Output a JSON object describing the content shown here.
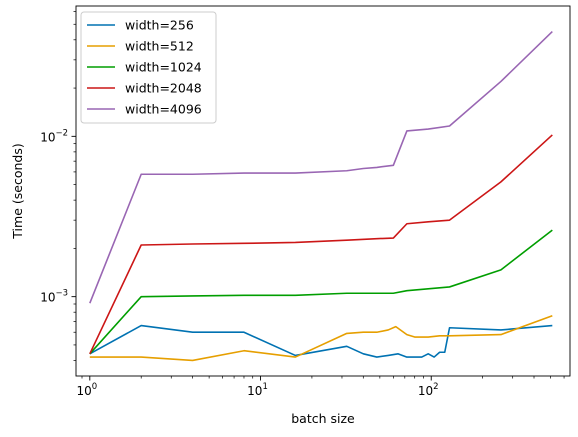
{
  "chart_data": {
    "type": "line",
    "xlabel": "batch size",
    "ylabel": "Time (seconds)",
    "xscale": "log",
    "yscale": "log",
    "xlim": [
      0.83,
      650
    ],
    "ylim": [
      0.00032,
      0.065
    ],
    "grid": false,
    "legend_position": "top-left",
    "x_ticks": [
      {
        "value": 1,
        "label": "10",
        "exp": "0"
      },
      {
        "value": 10,
        "label": "10",
        "exp": "1"
      },
      {
        "value": 100,
        "label": "10",
        "exp": "2"
      }
    ],
    "y_ticks": [
      {
        "value": 0.001,
        "label": "10",
        "exp": "−3"
      },
      {
        "value": 0.01,
        "label": "10",
        "exp": "−2"
      }
    ],
    "series": [
      {
        "name": "width=256",
        "color": "#0072b2",
        "points": [
          [
            1,
            0.00044
          ],
          [
            2,
            0.00066
          ],
          [
            4,
            0.0006
          ],
          [
            8,
            0.0006
          ],
          [
            16,
            0.00043
          ],
          [
            32,
            0.00049
          ],
          [
            40,
            0.00044
          ],
          [
            48,
            0.00042
          ],
          [
            56,
            0.00043
          ],
          [
            64,
            0.00044
          ],
          [
            72,
            0.00042
          ],
          [
            80,
            0.00042
          ],
          [
            88,
            0.00042
          ],
          [
            96,
            0.00044
          ],
          [
            104,
            0.00042
          ],
          [
            112,
            0.00045
          ],
          [
            120,
            0.00045
          ],
          [
            128,
            0.00064
          ],
          [
            256,
            0.00062
          ],
          [
            512,
            0.00066
          ]
        ]
      },
      {
        "name": "width=512",
        "color": "#e69f00",
        "points": [
          [
            1,
            0.00042
          ],
          [
            2,
            0.00042
          ],
          [
            4,
            0.0004
          ],
          [
            8,
            0.00046
          ],
          [
            16,
            0.00042
          ],
          [
            32,
            0.00059
          ],
          [
            40,
            0.0006
          ],
          [
            48,
            0.0006
          ],
          [
            56,
            0.00062
          ],
          [
            62,
            0.00065
          ],
          [
            72,
            0.00058
          ],
          [
            80,
            0.00056
          ],
          [
            96,
            0.00056
          ],
          [
            112,
            0.00057
          ],
          [
            128,
            0.00057
          ],
          [
            256,
            0.00058
          ],
          [
            512,
            0.00076
          ]
        ]
      },
      {
        "name": "width=1024",
        "color": "#009e00",
        "points": [
          [
            1,
            0.00044
          ],
          [
            2,
            0.001
          ],
          [
            4,
            0.00101
          ],
          [
            8,
            0.00102
          ],
          [
            16,
            0.00102
          ],
          [
            32,
            0.00105
          ],
          [
            48,
            0.00105
          ],
          [
            60,
            0.00105
          ],
          [
            72,
            0.00109
          ],
          [
            96,
            0.00112
          ],
          [
            128,
            0.00115
          ],
          [
            256,
            0.00147
          ],
          [
            512,
            0.0026
          ]
        ]
      },
      {
        "name": "width=2048",
        "color": "#cc1616",
        "points": [
          [
            1,
            0.00044
          ],
          [
            2,
            0.0021
          ],
          [
            4,
            0.00213
          ],
          [
            8,
            0.00215
          ],
          [
            16,
            0.00218
          ],
          [
            32,
            0.00225
          ],
          [
            48,
            0.0023
          ],
          [
            60,
            0.00232
          ],
          [
            72,
            0.00285
          ],
          [
            96,
            0.00293
          ],
          [
            128,
            0.003
          ],
          [
            256,
            0.0052
          ],
          [
            512,
            0.0102
          ]
        ]
      },
      {
        "name": "width=4096",
        "color": "#9966b3",
        "points": [
          [
            1,
            0.00091
          ],
          [
            2,
            0.0058
          ],
          [
            4,
            0.0058
          ],
          [
            8,
            0.0059
          ],
          [
            16,
            0.0059
          ],
          [
            32,
            0.0061
          ],
          [
            40,
            0.0063
          ],
          [
            48,
            0.0064
          ],
          [
            60,
            0.0066
          ],
          [
            72,
            0.0108
          ],
          [
            96,
            0.0111
          ],
          [
            128,
            0.0116
          ],
          [
            256,
            0.022
          ],
          [
            512,
            0.045
          ]
        ]
      }
    ]
  }
}
